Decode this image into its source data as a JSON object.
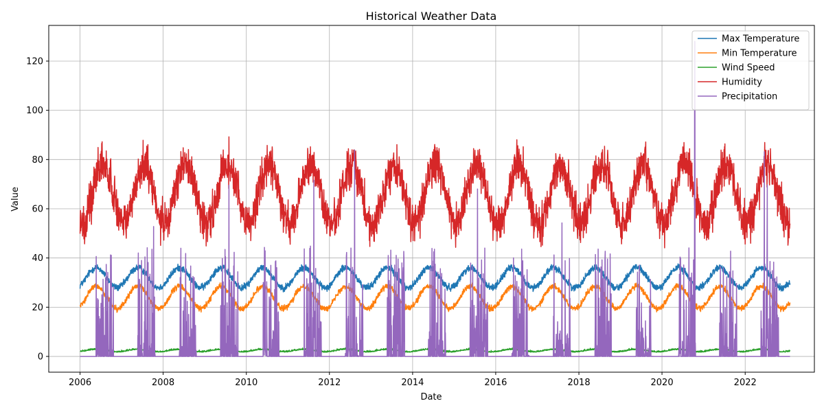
{
  "chart_data": {
    "type": "line",
    "title": "Historical Weather Data",
    "xlabel": "Date",
    "ylabel": "Value",
    "xlim": [
      "2005-04-01",
      "2023-09-01"
    ],
    "ylim": [
      -6.4,
      134.5
    ],
    "x_ticks": [
      "2006",
      "2008",
      "2010",
      "2012",
      "2014",
      "2016",
      "2018",
      "2020",
      "2022"
    ],
    "y_ticks": [
      0,
      20,
      40,
      60,
      80,
      100,
      120
    ],
    "grid": true,
    "legend_position": "top-right",
    "x_range": [
      "2006-01-01",
      "2023-01-31"
    ],
    "series": [
      {
        "name": "Max Temperature",
        "color": "#1f77b4",
        "baseline": 32,
        "amplitude": 4,
        "noise": 1.2
      },
      {
        "name": "Min Temperature",
        "color": "#ff7f0e",
        "baseline": 24,
        "amplitude": 4.5,
        "noise": 1.0
      },
      {
        "name": "Wind Speed",
        "color": "#2ca02c",
        "baseline": 2.2,
        "amplitude": 0.5,
        "noise": 0.5
      },
      {
        "name": "Humidity",
        "color": "#d62728",
        "baseline": 66,
        "amplitude": 12,
        "noise": 7
      },
      {
        "name": "Precipitation",
        "color": "#9467bd",
        "baseline": 0,
        "peak_max": 128
      }
    ]
  }
}
